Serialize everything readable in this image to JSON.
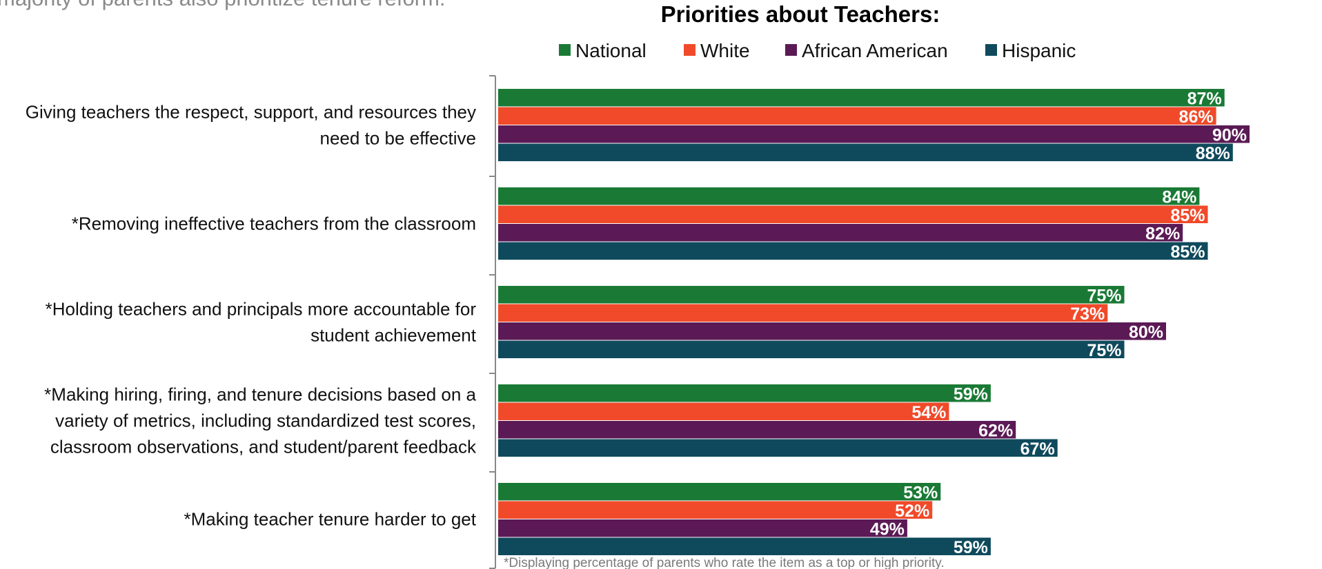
{
  "page": {
    "subtitle": "majority of parents also prioritize tenure reform."
  },
  "chart_data": {
    "type": "bar",
    "orientation": "horizontal",
    "title": "Priorities about Teachers:",
    "categories": [
      [
        "Giving teachers the respect, support, and resources they",
        "need to be effective"
      ],
      [
        "*Removing ineffective teachers from the classroom"
      ],
      [
        "*Holding teachers and principals more accountable for",
        "student achievement"
      ],
      [
        "*Making hiring, firing, and tenure decisions based on a",
        "variety of metrics, including standardized test scores,",
        "classroom observations, and student/parent feedback"
      ],
      [
        "*Making teacher tenure harder to get"
      ]
    ],
    "series": [
      {
        "name": "National",
        "color": "#1a7a35",
        "values": [
          87,
          84,
          75,
          59,
          53
        ]
      },
      {
        "name": "White",
        "color": "#f04a2a",
        "values": [
          86,
          85,
          73,
          54,
          52
        ]
      },
      {
        "name": "African American",
        "color": "#5b1a55",
        "values": [
          90,
          82,
          80,
          62,
          49
        ]
      },
      {
        "name": "Hispanic",
        "color": "#0f4a5c",
        "values": [
          88,
          85,
          75,
          67,
          59
        ]
      }
    ],
    "value_suffix": "%",
    "xlim": [
      0,
      100
    ],
    "legend_position": "top",
    "grid": false,
    "footnote": "*Displaying percentage of parents who rate the item as a top or high priority."
  }
}
